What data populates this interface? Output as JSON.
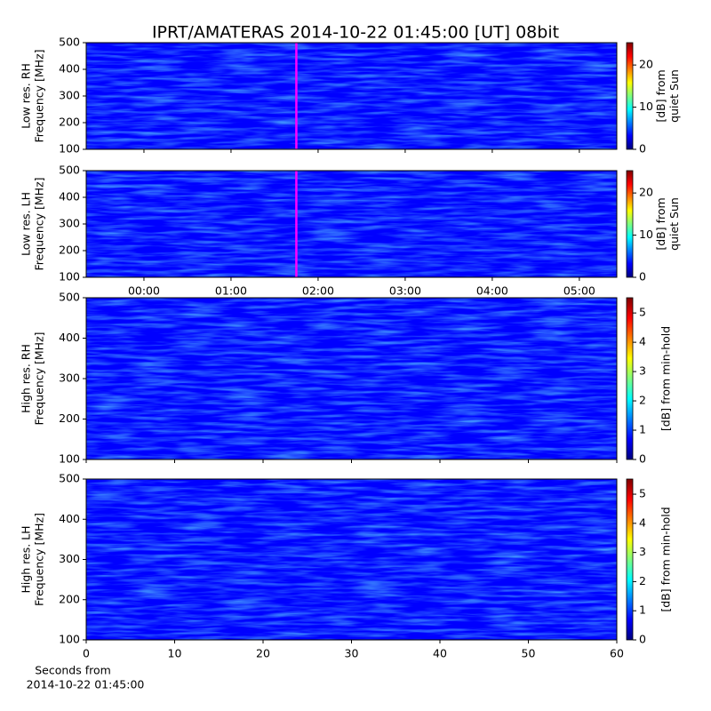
{
  "title": "IPRT/AMATERAS 2014-10-22 01:45:00 [UT]   08bit",
  "chart_data": [
    {
      "type": "heatmap",
      "colormap": "jet",
      "ylabel": [
        "Low res. RH",
        "Frequency [MHz]"
      ],
      "xlim": [
        -0.663,
        5.43
      ],
      "xticks": [
        0,
        1,
        2,
        3,
        4,
        5
      ],
      "ylim": [
        100,
        500
      ],
      "yticks": [
        100,
        200,
        300,
        400,
        500
      ],
      "marker_x": 1.75,
      "marker_color": "#ff00ff",
      "colorbar": {
        "label": [
          "[dB] from",
          "quiet Sun"
        ],
        "lim": [
          0,
          25.3
        ],
        "ticks": [
          0,
          10,
          20
        ]
      }
    },
    {
      "type": "heatmap",
      "colormap": "jet",
      "ylabel": [
        "Low res. LH",
        "Frequency [MHz]"
      ],
      "xlim": [
        -0.663,
        5.43
      ],
      "xticks": [
        {
          "value": 0,
          "label": "00:00"
        },
        {
          "value": 1,
          "label": "01:00"
        },
        {
          "value": 2,
          "label": "02:00"
        },
        {
          "value": 3,
          "label": "03:00"
        },
        {
          "value": 4,
          "label": "04:00"
        },
        {
          "value": 5,
          "label": "05:00"
        }
      ],
      "ylim": [
        100,
        500
      ],
      "yticks": [
        100,
        200,
        300,
        400,
        500
      ],
      "marker_x": 1.75,
      "marker_color": "#ff00ff",
      "colorbar": {
        "label": [
          "[dB] from",
          "quiet Sun"
        ],
        "lim": [
          0,
          25.3
        ],
        "ticks": [
          0,
          10,
          20
        ]
      }
    },
    {
      "type": "heatmap",
      "colormap": "jet",
      "ylabel": [
        "High res. RH",
        "Frequency [MHz]"
      ],
      "xlim": [
        0,
        60
      ],
      "xticks": [
        0,
        10,
        20,
        30,
        40,
        50,
        60
      ],
      "ylim": [
        100,
        500
      ],
      "yticks": [
        100,
        200,
        300,
        400,
        500
      ],
      "colorbar": {
        "label": [
          "[dB] from min-hold"
        ],
        "lim": [
          0,
          5.52
        ],
        "ticks": [
          0,
          1,
          2,
          3,
          4,
          5
        ]
      }
    },
    {
      "type": "heatmap",
      "colormap": "jet",
      "ylabel": [
        "High res. LH",
        "Frequency [MHz]"
      ],
      "xlim": [
        0,
        60
      ],
      "xticks": [
        0,
        10,
        20,
        30,
        40,
        50,
        60
      ],
      "xticklabels": true,
      "xlabel": [
        "Seconds from",
        "2014-10-22 01:45:00"
      ],
      "ylim": [
        100,
        500
      ],
      "yticks": [
        100,
        200,
        300,
        400,
        500
      ],
      "colorbar": {
        "label": [
          "[dB] from min-hold"
        ],
        "lim": [
          0,
          5.52
        ],
        "ticks": [
          0,
          1,
          2,
          3,
          4,
          5
        ]
      }
    }
  ]
}
